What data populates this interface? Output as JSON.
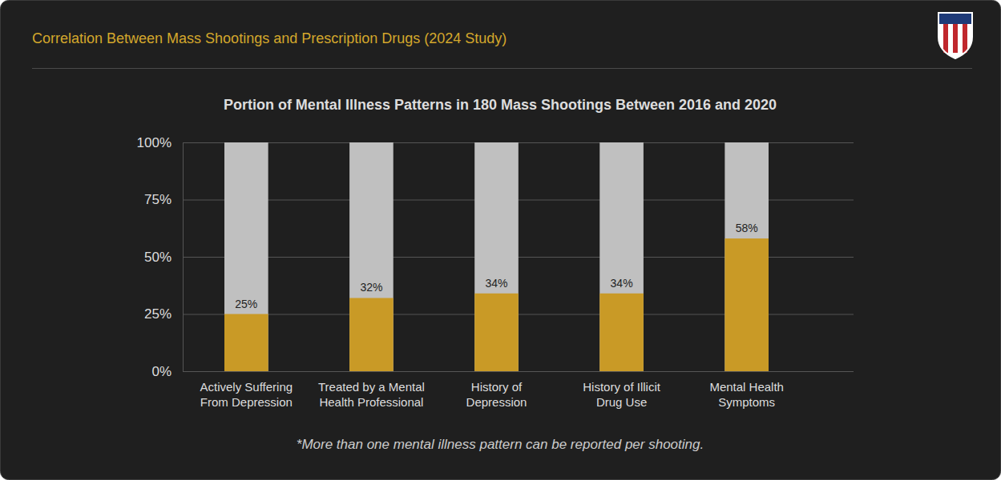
{
  "chart_data": {
    "type": "bar",
    "title": "Correlation Between Mass Shootings and Prescription Drugs (2024 Study)",
    "subtitle": "Portion of Mental Illness Patterns in 180 Mass Shootings Between 2016 and 2020",
    "categories": [
      "Actively Suffering From Depression",
      "Treated by a Mental Health Professional",
      "History of Depression",
      "History of Illicit Drug Use",
      "Mental Health Symptoms"
    ],
    "values": [
      25,
      32,
      34,
      34,
      58
    ],
    "value_labels": [
      "25%",
      "32%",
      "34%",
      "34%",
      "58%"
    ],
    "color": "#c99a26",
    "ylim": [
      0,
      100
    ],
    "yticks": [
      {
        "value": 0,
        "label": "0%"
      },
      {
        "value": 25,
        "label": "25%"
      },
      {
        "value": 50,
        "label": "50%"
      },
      {
        "value": 75,
        "label": "75%"
      },
      {
        "value": 100,
        "label": "100%"
      }
    ],
    "grid": true,
    "data_labels": true,
    "annotations": [
      "*More than one mental illness pattern can be reported per shooting."
    ]
  }
}
